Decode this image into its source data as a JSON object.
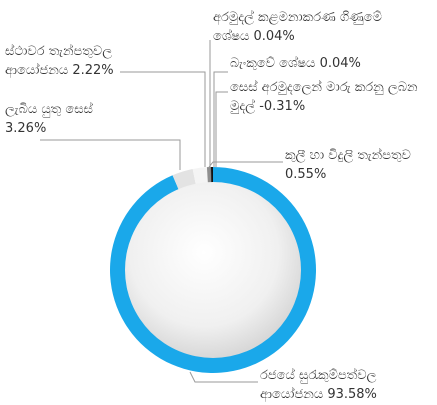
{
  "chart_data": {
    "type": "donut",
    "categories": [
      "රජයේ සුරැකුම්පත්වල ආයෝජනය",
      "ලැබිය යුතු සෙස්",
      "ස්ථාවර තැන්පතුවල ආයෝජනය",
      "කුලී හා විදුලි තැන්පතුව",
      "අරමුදල් කළමනාකරණ ගිණුමේ ශේෂය",
      "බැංකුවේ ශේෂය",
      "සෙස් අරමුදලෙන් මාරු කරනු ලබන මුදල්"
    ],
    "values": [
      93.58,
      3.26,
      2.22,
      0.55,
      0.04,
      0.04,
      -0.31
    ],
    "value_labels": [
      "93.58%",
      "3.26%",
      "2.22%",
      "0.55%",
      "0.04%",
      "0.04%",
      "-0.31%"
    ],
    "colors": [
      "#1aa8ea",
      "#e3e3e3",
      "#f4f4f4",
      "#8e8e8e",
      "#555555",
      "#333333",
      "#111111"
    ]
  }
}
